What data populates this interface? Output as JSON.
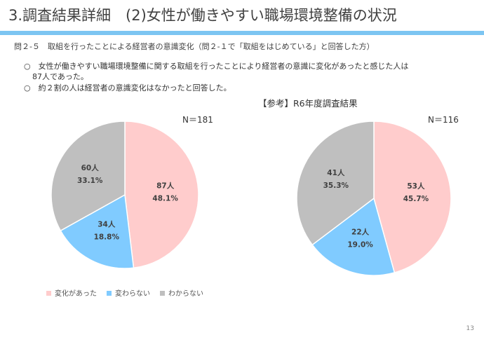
{
  "title": "3.調査結果詳細　(2)女性が働きやすい職場環境整備の状況",
  "question": "問２-５　取組を行ったことによる経営者の意識変化（問２-１で「取組をはじめている」と回答した方）",
  "bullets": [
    "○　女性が働きやすい職場環境整備に関する取組を行ったことにより経営者の意識に変化があったと感じた人は",
    "87人であった。",
    "○　約２割の人は経営者の意識変化はなかったと回答した。"
  ],
  "page_number": "13",
  "colors": {
    "変化があった": "#FFCCCC",
    "変わらない": "#80CBFF",
    "わからない": "#BFBFBF",
    "accent": "#7CC5F2"
  },
  "chart_data": [
    {
      "type": "pie",
      "n_label": "N＝181",
      "categories": [
        "変化があった",
        "変わらない",
        "わからない"
      ],
      "counts": [
        "87人",
        "34人",
        "60人"
      ],
      "percents": [
        "48.1%",
        "18.8%",
        "33.1%"
      ],
      "values": [
        48.1,
        18.8,
        33.1
      ],
      "legend": "bottom"
    },
    {
      "type": "pie",
      "title": "【参考】R6年度調査結果",
      "n_label": "N＝116",
      "categories": [
        "変化があった",
        "変わらない",
        "わからない"
      ],
      "counts": [
        "53人",
        "22人",
        "41人"
      ],
      "percents": [
        "45.7%",
        "19.0%",
        "35.3%"
      ],
      "values": [
        45.7,
        19.0,
        35.3
      ]
    }
  ]
}
